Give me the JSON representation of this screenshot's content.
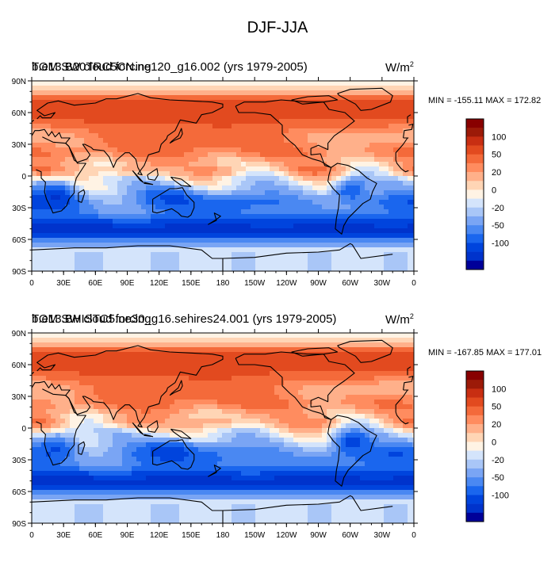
{
  "figure": {
    "title": "DJF-JJA"
  },
  "colorbar": {
    "colors": [
      "#000099",
      "#0033cc",
      "#0044dd",
      "#1a66ee",
      "#4a88f2",
      "#7aa5f4",
      "#a9c6f7",
      "#d4e4fb",
      "#fff3e4",
      "#ffd5b5",
      "#ffb08a",
      "#ff8c5f",
      "#f46a3a",
      "#e24a1f",
      "#c82e12",
      "#9c1a08",
      "#880000"
    ],
    "tick_labels": [
      "100",
      "50",
      "20",
      "0",
      "-20",
      "-50",
      "-100"
    ]
  },
  "chart_data": [
    {
      "type": "heatmap",
      "title": "TOM SW cloud forcing",
      "subtitle": "b.e13.B20TRC5CN.ne120_g16.002 (yrs 1979-2005)",
      "units": "W/m2",
      "min": -155.11,
      "max": 172.82,
      "minmax_label": "MIN = -155.11 MAX = 172.82",
      "x_tick_labels": [
        "0",
        "30E",
        "60E",
        "90E",
        "120E",
        "150E",
        "180",
        "150W",
        "120W",
        "90W",
        "60W",
        "30W",
        "0"
      ],
      "y_tick_labels": [
        "90N",
        "60N",
        "30N",
        "0",
        "30S",
        "60S",
        "90S"
      ],
      "xlim": [
        0,
        360
      ],
      "ylim": [
        -90,
        90
      ]
    },
    {
      "type": "heatmap",
      "title": "TOM SW cloud forcing",
      "subtitle": "b.e13.BHISTC5.ne30_g16.sehires24.001 (yrs 1979-2005)",
      "units": "W/m2",
      "min": -167.85,
      "max": 177.01,
      "minmax_label": "MIN = -167.85 MAX = 177.01",
      "x_tick_labels": [
        "0",
        "30E",
        "60E",
        "90E",
        "120E",
        "150E",
        "180",
        "150W",
        "120W",
        "90W",
        "60W",
        "30W",
        "0"
      ],
      "y_tick_labels": [
        "90N",
        "60N",
        "30N",
        "0",
        "30S",
        "60S",
        "90S"
      ],
      "xlim": [
        0,
        360
      ],
      "ylim": [
        -90,
        90
      ]
    }
  ]
}
